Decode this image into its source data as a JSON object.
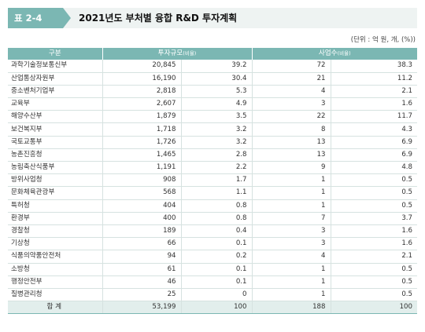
{
  "header": {
    "tag": "표 2-4",
    "title": "2021년도 부처별 융합 R&D 투자계획"
  },
  "unit": "(단위 : 억 원, 개, (%))",
  "columns": {
    "dept": "구분",
    "invest": "투자규모",
    "invest_sub": "(비율)",
    "projects": "사업수",
    "projects_sub": "(비율)"
  },
  "rows": [
    [
      "과학기술정보통신부",
      "20,845",
      "39.2",
      "72",
      "38.3"
    ],
    [
      "산업통상자원부",
      "16,190",
      "30.4",
      "21",
      "11.2"
    ],
    [
      "중소벤처기업부",
      "2,818",
      "5.3",
      "4",
      "2.1"
    ],
    [
      "교육부",
      "2,607",
      "4.9",
      "3",
      "1.6"
    ],
    [
      "해양수산부",
      "1,879",
      "3.5",
      "22",
      "11.7"
    ],
    [
      "보건복지부",
      "1,718",
      "3.2",
      "8",
      "4.3"
    ],
    [
      "국토교통부",
      "1,726",
      "3.2",
      "13",
      "6.9"
    ],
    [
      "농촌진흥청",
      "1,465",
      "2.8",
      "13",
      "6.9"
    ],
    [
      "농림축산식품부",
      "1,191",
      "2.2",
      "9",
      "4.8"
    ],
    [
      "방위사업청",
      "908",
      "1.7",
      "1",
      "0.5"
    ],
    [
      "문화체육관광부",
      "568",
      "1.1",
      "1",
      "0.5"
    ],
    [
      "특허청",
      "404",
      "0.8",
      "1",
      "0.5"
    ],
    [
      "환경부",
      "400",
      "0.8",
      "7",
      "3.7"
    ],
    [
      "경찰청",
      "189",
      "0.4",
      "3",
      "1.6"
    ],
    [
      "기상청",
      "66",
      "0.1",
      "3",
      "1.6"
    ],
    [
      "식품의약품안전처",
      "94",
      "0.2",
      "4",
      "2.1"
    ],
    [
      "소방청",
      "61",
      "0.1",
      "1",
      "0.5"
    ],
    [
      "행정안전부",
      "46",
      "0.1",
      "1",
      "0.5"
    ],
    [
      "질병관리청",
      "25",
      "0",
      "1",
      "0.5"
    ]
  ],
  "total": [
    "합 계",
    "53,199",
    "100",
    "188",
    "100"
  ]
}
